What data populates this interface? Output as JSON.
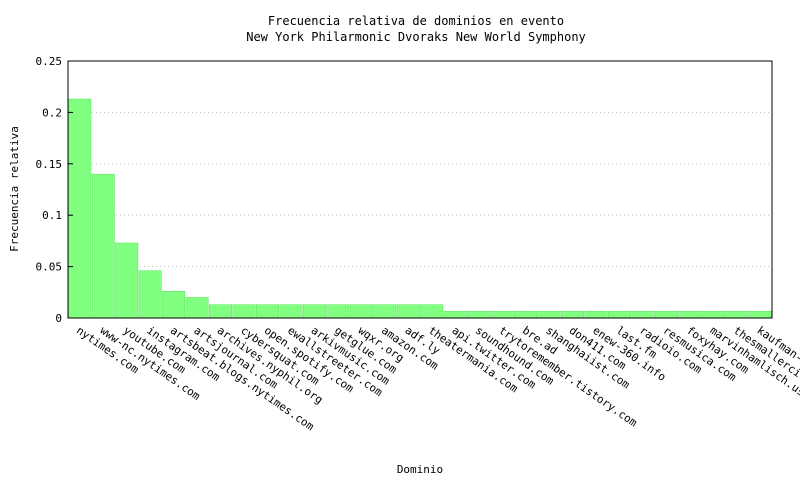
{
  "chart_data": {
    "type": "bar",
    "title": "Frecuencia relativa de dominios en evento",
    "subtitle": "New York Philarmonic Dvoraks New World Symphony",
    "xlabel": "Dominio",
    "ylabel": "Frecuencia relativa",
    "ylim": [
      0,
      0.25
    ],
    "yticks": [
      "0",
      "0.05",
      "0.1",
      "0.15",
      "0.2",
      "0.25"
    ],
    "grid": true,
    "bar_color": "#80ff80",
    "categories": [
      "nytimes.com",
      "www-nc.nytimes.com",
      "youtube.com",
      "instagram.com",
      "artsbeat.blogs.nytimes.com",
      "artsjournal.com",
      "archives.nyphil.org",
      "cybersquat.com",
      "open.spotify.com",
      "ewallstreeter.com",
      "arkivmusic.com",
      "getglue.com",
      "wqxr.org",
      "amazon.com",
      "adf.ly",
      "theatermania.com",
      "api.twitter.com",
      "soundhound.com",
      "trytoremember.tistory.com",
      "bre.ad",
      "shanghaiist.com",
      "don411.com",
      "enew-360.info",
      "last.fm",
      "radioio.com",
      "resmusica.com",
      "foxyhay.com",
      "marvinhamlisch.us",
      "thesmallercit...",
      "kaufman-c..."
    ],
    "values": [
      0.213,
      0.14,
      0.073,
      0.046,
      0.026,
      0.02,
      0.013,
      0.013,
      0.013,
      0.013,
      0.013,
      0.013,
      0.013,
      0.013,
      0.013,
      0.013,
      0.0066,
      0.0066,
      0.0066,
      0.0066,
      0.0066,
      0.0066,
      0.0066,
      0.0066,
      0.0066,
      0.0066,
      0.0066,
      0.0066,
      0.0066,
      0.0066
    ]
  }
}
